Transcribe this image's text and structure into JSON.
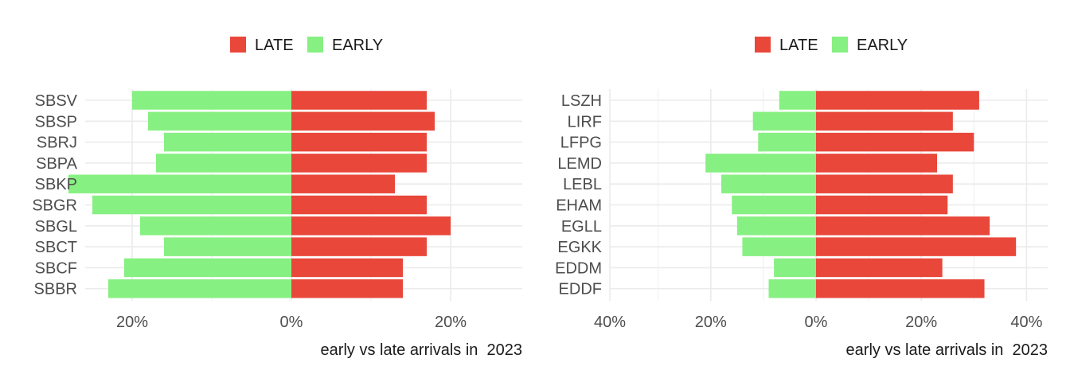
{
  "colors": {
    "late": "#E8473A",
    "early": "#87F082",
    "grid": "#EBEBEB"
  },
  "chart_data": [
    {
      "type": "bar",
      "orientation": "horizontal",
      "stacked": "diverging",
      "xlabel": "early vs late arrivals in  2023",
      "legend": {
        "position": "top",
        "entries": [
          "LATE",
          "EARLY"
        ]
      },
      "xlim": [
        -0.38,
        0.44
      ],
      "xticks": [
        -0.2,
        0,
        0.2,
        0.4
      ],
      "xtick_labels": [
        "20%",
        "0%",
        "20%",
        "40%"
      ],
      "grid": true,
      "categories": [
        "SBSV",
        "SBSP",
        "SBRJ",
        "SBPA",
        "SBKP",
        "SBGR",
        "SBGL",
        "SBCT",
        "SBCF",
        "SBBR"
      ],
      "series": [
        {
          "name": "LATE",
          "values": [
            0.17,
            0.18,
            0.17,
            0.17,
            0.13,
            0.17,
            0.2,
            0.17,
            0.14,
            0.14
          ]
        },
        {
          "name": "EARLY",
          "values": [
            -0.2,
            -0.18,
            -0.16,
            -0.17,
            -0.28,
            -0.25,
            -0.19,
            -0.16,
            -0.21,
            -0.23
          ]
        }
      ]
    },
    {
      "type": "bar",
      "orientation": "horizontal",
      "stacked": "diverging",
      "xlabel": "early vs late arrivals in  2023",
      "legend": {
        "position": "top",
        "entries": [
          "LATE",
          "EARLY"
        ]
      },
      "xlim": [
        -0.38,
        0.44
      ],
      "xticks": [
        -0.2,
        0,
        0.2,
        0.4
      ],
      "xtick_labels": [
        "20%",
        "0%",
        "20%",
        "40%"
      ],
      "grid": true,
      "categories": [
        "LSZH",
        "LIRF",
        "LFPG",
        "LEMD",
        "LEBL",
        "EHAM",
        "EGLL",
        "EGKK",
        "EDDM",
        "EDDF"
      ],
      "series": [
        {
          "name": "LATE",
          "values": [
            0.31,
            0.26,
            0.3,
            0.23,
            0.26,
            0.25,
            0.33,
            0.38,
            0.24,
            0.32
          ]
        },
        {
          "name": "EARLY",
          "values": [
            -0.07,
            -0.12,
            -0.11,
            -0.21,
            -0.18,
            -0.16,
            -0.15,
            -0.14,
            -0.08,
            -0.09
          ]
        }
      ]
    }
  ]
}
